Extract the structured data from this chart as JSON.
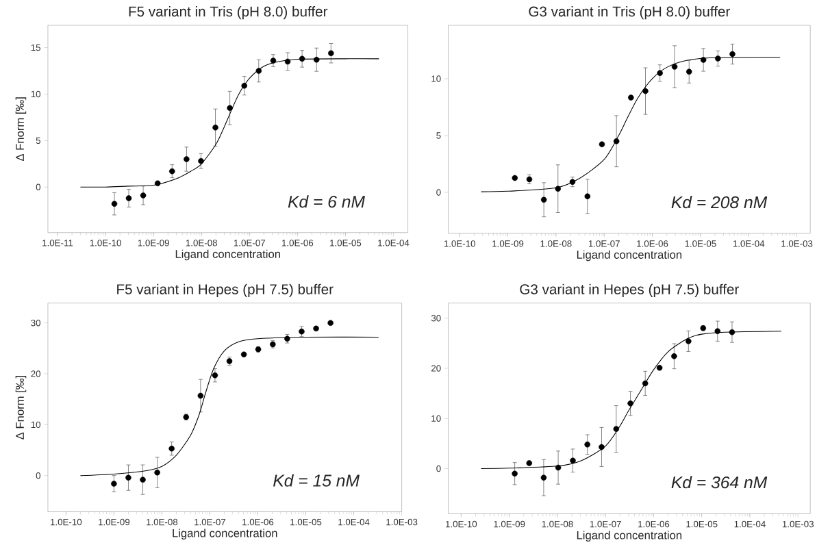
{
  "chart_data": [
    {
      "type": "scatter",
      "title": "F5 variant in Tris (pH 8.0) buffer",
      "xlabel": "Ligand concentration",
      "ylabel": "Δ Fnorm [‰]",
      "log": "x",
      "xlim": [
        6.3e-12,
        0.0002
      ],
      "ylim": [
        -4.9,
        17.4
      ],
      "xticks": [
        {
          "value": 1e-11,
          "label": "1.0E-11"
        },
        {
          "value": 1e-10,
          "label": "1.0E-10"
        },
        {
          "value": 1e-09,
          "label": "1.0E-09"
        },
        {
          "value": 1e-08,
          "label": "1.0E-08"
        },
        {
          "value": 1e-07,
          "label": "1.0E-07"
        },
        {
          "value": 1e-06,
          "label": "1.0E-06"
        },
        {
          "value": 1e-05,
          "label": "1.0E-05"
        },
        {
          "value": 0.0001,
          "label": "1.0E-04"
        }
      ],
      "yticks": [
        0,
        5,
        10,
        15
      ],
      "annotations": [
        "Kd = 6 nM"
      ],
      "series": [
        {
          "color": "#000000",
          "marker": "circle",
          "x": [
            1.53e-10,
            3.05e-10,
            6.1e-10,
            1.22e-09,
            2.44e-09,
            4.88e-09,
            9.77e-09,
            1.95e-08,
            3.9e-08,
            7.8e-08,
            1.56e-07,
            3.13e-07,
            6.25e-07,
            1.25e-06,
            2.5e-06,
            5e-06
          ],
          "values": [
            -1.8,
            -1.2,
            -0.9,
            0.4,
            1.7,
            3.0,
            2.8,
            6.4,
            8.5,
            10.9,
            12.5,
            13.6,
            13.5,
            13.8,
            13.7,
            14.4
          ],
          "errors": [
            1.2,
            0.95,
            1.0,
            null,
            0.7,
            1.3,
            0.8,
            2.0,
            1.8,
            1.0,
            1.2,
            0.65,
            0.95,
            0.9,
            1.25,
            1.05
          ]
        },
        {
          "type": "line",
          "color": "#000000",
          "marker": "none",
          "x": [
            3e-11,
            1e-10,
            3e-10,
            1e-09,
            3e-09,
            6e-09,
            1e-08,
            2e-08,
            3e-08,
            4e-08,
            6e-08,
            1e-07,
            2e-07,
            4e-07,
            1e-06,
            1e-05,
            5e-05
          ],
          "values": [
            0.0,
            0.0,
            0.1,
            0.2,
            0.9,
            1.7,
            2.5,
            4.6,
            6.5,
            8.0,
            10.0,
            11.7,
            13.0,
            13.5,
            13.75,
            13.8,
            13.8
          ]
        }
      ]
    },
    {
      "type": "scatter",
      "title": "G3 variant in Tris (pH 8.0) buffer",
      "xlabel": "Ligand concentration",
      "log": "x",
      "xlim": [
        5.8e-11,
        0.0019
      ],
      "ylim": [
        -3.6,
        14.7
      ],
      "xticks": [
        {
          "value": 1e-10,
          "label": "1.0E-10"
        },
        {
          "value": 1e-09,
          "label": "1.0E-09"
        },
        {
          "value": 1e-08,
          "label": "1.0E-08"
        },
        {
          "value": 1e-07,
          "label": "1.0E-07"
        },
        {
          "value": 1e-06,
          "label": "1.0E-06"
        },
        {
          "value": 1e-05,
          "label": "1.0E-05"
        },
        {
          "value": 0.0001,
          "label": "1.0E-04"
        },
        {
          "value": 0.001,
          "label": "1.0E-03"
        }
      ],
      "yticks": [
        0,
        5,
        10
      ],
      "annotations": [
        "Kd = 208 nM"
      ],
      "series": [
        {
          "color": "#000000",
          "marker": "circle",
          "x": [
            1.4e-09,
            2.8e-09,
            5.6e-09,
            1.1e-08,
            2.2e-08,
            4.5e-08,
            9e-08,
            1.8e-07,
            3.6e-07,
            7.2e-07,
            1.44e-06,
            2.9e-06,
            5.8e-06,
            1.15e-05,
            2.3e-05,
            4.6e-05
          ],
          "values": [
            1.27,
            1.15,
            -0.65,
            0.32,
            0.92,
            -0.35,
            4.23,
            4.5,
            8.34,
            8.91,
            10.5,
            11.06,
            10.62,
            11.66,
            11.78,
            12.17
          ],
          "errors": [
            null,
            0.4,
            1.5,
            2.1,
            0.42,
            1.5,
            null,
            2.25,
            null,
            2.05,
            0.72,
            1.84,
            1.0,
            1.0,
            0.67,
            0.88
          ]
        },
        {
          "type": "line",
          "color": "#000000",
          "marker": "none",
          "x": [
            2.8e-10,
            1e-09,
            1e-08,
            3e-08,
            1e-07,
            2e-07,
            3e-07,
            5e-07,
            1e-06,
            2e-06,
            5e-06,
            2e-05,
            0.00045
          ],
          "values": [
            0.05,
            0.1,
            0.4,
            1.2,
            2.9,
            5.0,
            6.5,
            8.3,
            10.0,
            11.0,
            11.6,
            11.85,
            11.9
          ]
        }
      ]
    },
    {
      "type": "scatter",
      "title": "F5 variant in Hepes (pH 7.5) buffer",
      "xlabel": "Ligand concentration",
      "ylabel": "Δ Fnorm [‰]",
      "log": "x",
      "xlim": [
        4.2e-11,
        0.001
      ],
      "ylim": [
        -7.1,
        33.9
      ],
      "xticks": [
        {
          "value": 1e-10,
          "label": "1.0E-10"
        },
        {
          "value": 1e-09,
          "label": "1.0E-09"
        },
        {
          "value": 1e-08,
          "label": "1.0E-08"
        },
        {
          "value": 1e-07,
          "label": "1.0E-07"
        },
        {
          "value": 1e-06,
          "label": "1.0E-06"
        },
        {
          "value": 1e-05,
          "label": "1.0E-05"
        },
        {
          "value": 0.0001,
          "label": "1.0E-04"
        },
        {
          "value": 0.001,
          "label": "1.0E-03"
        }
      ],
      "yticks": [
        0,
        10,
        20,
        30
      ],
      "annotations": [
        "Kd = 15 nM"
      ],
      "series": [
        {
          "color": "#000000",
          "marker": "circle",
          "x": [
            1e-09,
            2e-09,
            4e-09,
            8e-09,
            1.6e-08,
            3.2e-08,
            6.4e-08,
            1.28e-07,
            2.56e-07,
            5.12e-07,
            1.02e-06,
            2.05e-06,
            4.1e-06,
            8.2e-06,
            1.64e-05,
            3.28e-05
          ],
          "values": [
            -1.6,
            -0.4,
            -0.8,
            0.6,
            5.3,
            11.5,
            15.7,
            19.7,
            22.5,
            23.8,
            24.8,
            25.8,
            26.9,
            28.3,
            28.9,
            30.0
          ],
          "errors": [
            1.6,
            2.5,
            2.9,
            3.0,
            1.3,
            0.55,
            3.2,
            1.3,
            0.8,
            null,
            0.5,
            0.7,
            0.85,
            1.0,
            null,
            null
          ]
        },
        {
          "type": "line",
          "color": "#000000",
          "marker": "none",
          "x": [
            2e-10,
            1e-09,
            5e-09,
            1e-08,
            2e-08,
            4e-08,
            6e-08,
            8e-08,
            1.2e-07,
            2e-07,
            4e-07,
            1e-06,
            1e-05,
            0.00033
          ],
          "values": [
            0.0,
            0.3,
            1.0,
            1.8,
            4.0,
            8.0,
            12.0,
            16.0,
            21.0,
            24.5,
            26.3,
            26.9,
            27.2,
            27.2
          ]
        }
      ]
    },
    {
      "type": "scatter",
      "title": "G3 variant in Hepes (pH 7.5) buffer",
      "xlabel": "Ligand concentration",
      "log": "x",
      "xlim": [
        5.4e-11,
        0.0018
      ],
      "ylim": [
        -9.0,
        33.0
      ],
      "xticks": [
        {
          "value": 1e-10,
          "label": "1.0E-10"
        },
        {
          "value": 1e-09,
          "label": "1.0E-09"
        },
        {
          "value": 1e-08,
          "label": "1.0E-08"
        },
        {
          "value": 1e-07,
          "label": "1.0E-07"
        },
        {
          "value": 1e-06,
          "label": "1.0E-06"
        },
        {
          "value": 1e-05,
          "label": "1.0E-05"
        },
        {
          "value": 0.0001,
          "label": "1.0E-04"
        },
        {
          "value": 0.001,
          "label": "1.0E-03"
        }
      ],
      "yticks": [
        0,
        10,
        20,
        30
      ],
      "annotations": [
        "Kd = 364 nM"
      ],
      "series": [
        {
          "color": "#000000",
          "marker": "circle",
          "x": [
            1.3e-09,
            2.6e-09,
            5.2e-09,
            1.04e-08,
            2.1e-08,
            4.2e-08,
            8.3e-08,
            1.67e-07,
            3.3e-07,
            6.7e-07,
            1.33e-06,
            2.67e-06,
            5.3e-06,
            1.07e-05,
            2.13e-05,
            4.27e-05
          ],
          "values": [
            -1.0,
            1.1,
            -1.8,
            0.2,
            1.6,
            4.8,
            4.3,
            7.9,
            13.0,
            17.0,
            20.1,
            22.4,
            25.4,
            28.0,
            27.4,
            27.2
          ],
          "errors": [
            2.2,
            null,
            3.6,
            3.3,
            2.3,
            1.95,
            3.9,
            4.65,
            2.4,
            2.4,
            null,
            2.5,
            2.05,
            0.45,
            2.0,
            2.05
          ]
        },
        {
          "type": "line",
          "color": "#000000",
          "marker": "none",
          "x": [
            2.6e-10,
            1e-09,
            1e-08,
            3e-08,
            1e-07,
            2e-07,
            3e-07,
            5e-07,
            1e-06,
            2e-06,
            5e-06,
            1e-05,
            3e-05,
            0.00045
          ],
          "values": [
            0.0,
            0.1,
            0.5,
            1.5,
            4.5,
            8.5,
            11.5,
            15.0,
            19.7,
            23.3,
            25.9,
            26.8,
            27.2,
            27.4
          ]
        }
      ]
    }
  ]
}
